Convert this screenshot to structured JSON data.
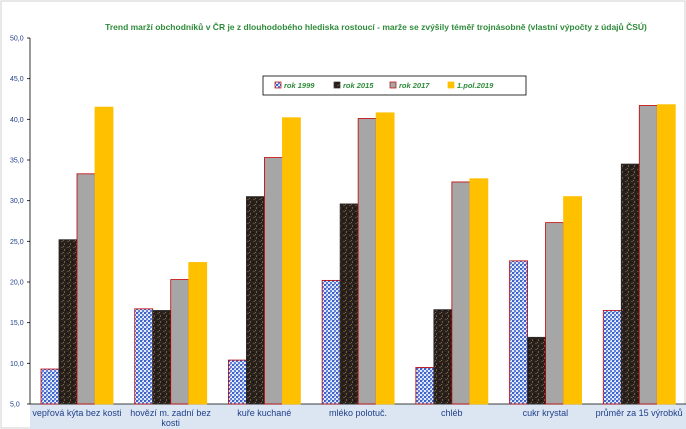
{
  "chart_data": {
    "type": "bar",
    "title": "Trend marží obchodníků v ČR je z dlouhodobého hlediska rostoucí -  marže se zvýšily téměř trojnásobně (vlastní výpočty z údajů ČSÚ)",
    "xlabel": "",
    "ylabel": "",
    "ylim": [
      5,
      50
    ],
    "yticks": [
      "5,0",
      "10,0",
      "15,0",
      "20,0",
      "25,0",
      "30,0",
      "35,0",
      "40,0",
      "45,0",
      "50,0"
    ],
    "grid": false,
    "legend_position": "top-center",
    "categories": [
      [
        "vepřová kýta bez kosti"
      ],
      [
        "hovězí m. zadní bez",
        "kosti"
      ],
      [
        "kuře kuchané"
      ],
      [
        "mléko polotuč."
      ],
      [
        "chléb"
      ],
      [
        "cukr krystal"
      ],
      [
        "průměr za 15 výrobků"
      ]
    ],
    "series": [
      {
        "name": "rok 1999",
        "color": "#7a9bd8",
        "pattern": "blue-weave",
        "values": [
          9.3,
          16.7,
          10.4,
          20.2,
          9.5,
          22.6,
          16.5
        ]
      },
      {
        "name": "rok 2015",
        "color": "#3a2e26",
        "pattern": "dark-marble",
        "values": [
          25.2,
          16.5,
          30.5,
          29.6,
          16.6,
          13.2,
          34.5
        ]
      },
      {
        "name": "rok 2017",
        "color": "#a6a6a6",
        "pattern": "solid",
        "values": [
          33.3,
          20.3,
          35.3,
          40.1,
          32.3,
          27.3,
          41.7
        ]
      },
      {
        "name": "1.pol.2019",
        "color": "#ffc000",
        "pattern": "solid",
        "values": [
          41.5,
          22.4,
          40.2,
          40.8,
          32.7,
          30.5,
          41.8
        ]
      }
    ]
  }
}
